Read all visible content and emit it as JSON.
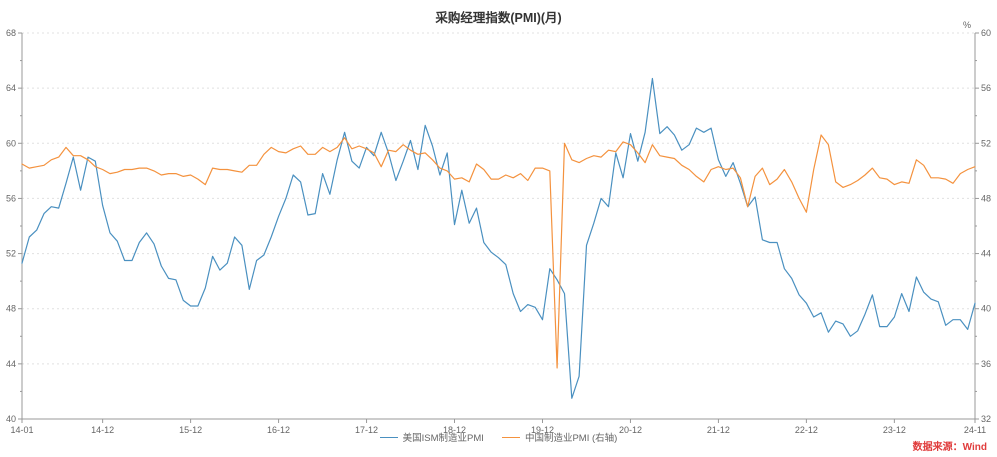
{
  "chart_data": {
    "type": "line",
    "title": "采购经理指数(PMI)(月)",
    "source_note": "数据来源：Wind",
    "grid": true,
    "legend_position": "bottom-center",
    "x_start": "2014-01",
    "x_end": "2024-11",
    "x_tick_indices": [
      0,
      11,
      23,
      35,
      47,
      59,
      71,
      83,
      95,
      107,
      119,
      130
    ],
    "x_tick_labels": [
      "14-01",
      "14-12",
      "15-12",
      "16-12",
      "17-12",
      "18-12",
      "19-12",
      "20-12",
      "21-12",
      "22-12",
      "23-12",
      "24-11"
    ],
    "left_axis": {
      "min": 40,
      "max": 68,
      "major_step": 4,
      "minor_step": 2
    },
    "right_axis": {
      "min": 32,
      "max": 60,
      "major_step": 4,
      "minor_step": 2,
      "unit": "%"
    },
    "colors": {
      "us_line": "#4a90c0",
      "china_line": "#f4923e",
      "axis": "#999999",
      "grid": "#e0e0e0",
      "tick_text": "#666666",
      "source_red": "#e03c3c"
    },
    "series": [
      {
        "name": "美国ISM制造业PMI",
        "axis": "left",
        "color": "#4a90c0",
        "values": [
          51.3,
          53.2,
          53.7,
          54.9,
          55.4,
          55.3,
          57.1,
          59.0,
          56.6,
          59.0,
          58.7,
          55.5,
          53.5,
          52.9,
          51.5,
          51.5,
          52.8,
          53.5,
          52.7,
          51.1,
          50.2,
          50.1,
          48.6,
          48.2,
          48.2,
          49.5,
          51.8,
          50.8,
          51.3,
          53.2,
          52.6,
          49.4,
          51.5,
          51.9,
          53.2,
          54.7,
          56.0,
          57.7,
          57.2,
          54.8,
          54.9,
          57.8,
          56.3,
          58.8,
          60.8,
          58.7,
          58.2,
          59.7,
          59.1,
          60.8,
          59.3,
          57.3,
          58.7,
          60.2,
          58.1,
          61.3,
          59.8,
          57.7,
          59.3,
          54.1,
          56.6,
          54.2,
          55.3,
          52.8,
          52.1,
          51.7,
          51.2,
          49.1,
          47.8,
          48.3,
          48.1,
          47.2,
          50.9,
          50.1,
          49.1,
          41.5,
          43.1,
          52.6,
          54.2,
          56.0,
          55.4,
          59.3,
          57.5,
          60.7,
          58.7,
          60.8,
          64.7,
          60.7,
          61.2,
          60.6,
          59.5,
          59.9,
          61.1,
          60.8,
          61.1,
          58.8,
          57.6,
          58.6,
          57.1,
          55.4,
          56.1,
          53.0,
          52.8,
          52.8,
          50.9,
          50.2,
          49.0,
          48.4,
          47.4,
          47.7,
          46.3,
          47.1,
          46.9,
          46.0,
          46.4,
          47.6,
          49.0,
          46.7,
          46.7,
          47.4,
          49.1,
          47.8,
          50.3,
          49.2,
          48.7,
          48.5,
          46.8,
          47.2,
          47.2,
          46.5,
          48.4
        ]
      },
      {
        "name": "中国制造业PMI (右轴)",
        "axis": "right",
        "color": "#f4923e",
        "values": [
          50.5,
          50.2,
          50.3,
          50.4,
          50.8,
          51.0,
          51.7,
          51.1,
          51.1,
          50.8,
          50.3,
          50.1,
          49.8,
          49.9,
          50.1,
          50.1,
          50.2,
          50.2,
          50.0,
          49.7,
          49.8,
          49.8,
          49.6,
          49.7,
          49.4,
          49.0,
          50.2,
          50.1,
          50.1,
          50.0,
          49.9,
          50.4,
          50.4,
          51.2,
          51.7,
          51.4,
          51.3,
          51.6,
          51.8,
          51.2,
          51.2,
          51.7,
          51.4,
          51.7,
          52.4,
          51.6,
          51.8,
          51.6,
          51.3,
          50.3,
          51.5,
          51.4,
          51.9,
          51.5,
          51.2,
          51.3,
          50.8,
          50.2,
          50.0,
          49.4,
          49.5,
          49.2,
          50.5,
          50.1,
          49.4,
          49.4,
          49.7,
          49.5,
          49.8,
          49.3,
          50.2,
          50.2,
          50.0,
          35.7,
          52.0,
          50.8,
          50.6,
          50.9,
          51.1,
          51.0,
          51.5,
          51.4,
          52.1,
          51.9,
          51.3,
          50.6,
          51.9,
          51.1,
          51.0,
          50.9,
          50.4,
          50.1,
          49.6,
          49.2,
          50.1,
          50.3,
          50.1,
          50.2,
          49.5,
          47.4,
          49.6,
          50.2,
          49.0,
          49.4,
          50.1,
          49.2,
          48.0,
          47.0,
          50.1,
          52.6,
          51.9,
          49.2,
          48.8,
          49.0,
          49.3,
          49.7,
          50.2,
          49.5,
          49.4,
          49.0,
          49.2,
          49.1,
          50.8,
          50.4,
          49.5,
          49.5,
          49.4,
          49.1,
          49.8,
          50.1,
          50.3
        ]
      }
    ]
  }
}
